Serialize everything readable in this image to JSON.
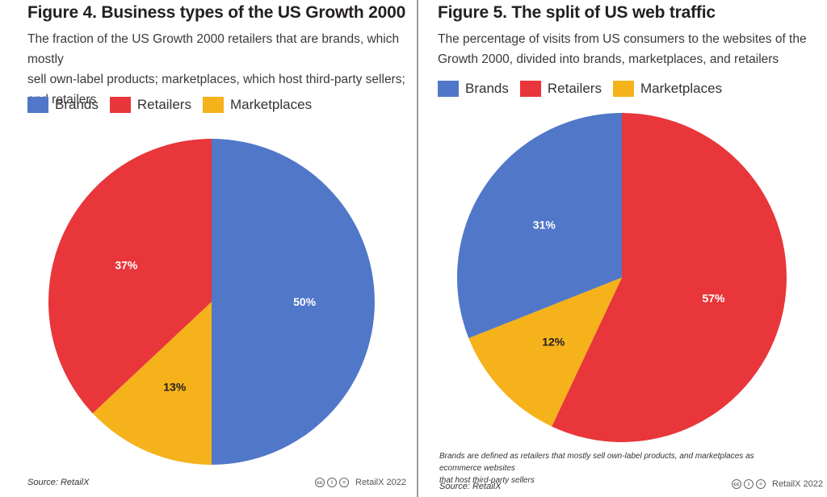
{
  "figure4": {
    "title": "Figure 4. Business types of the US Growth 2000",
    "subtitle": [
      "The fraction of the US Growth 2000 retailers that are brands, which mostly",
      "sell own-label products; marketplaces, which host third-party sellers;",
      "and retailers"
    ],
    "legend": [
      "Brands",
      "Retailers",
      "Marketplaces"
    ],
    "source": "Source: RetailX",
    "credit": "RetailX 2022"
  },
  "figure5": {
    "title": "Figure 5. The split of US web traffic",
    "subtitle": [
      "The percentage of visits from US consumers to the websites of the",
      "Growth 2000, divided into brands, marketplaces, and retailers"
    ],
    "legend": [
      "Brands",
      "Retailers",
      "Marketplaces"
    ],
    "footnote": [
      "Brands are defined as retailers that mostly sell own-label products, and marketplaces as ecommerce websites",
      "that host third-party sellers"
    ],
    "source": "Source: RetailX",
    "credit": "RetailX 2022"
  },
  "chart_data": [
    {
      "type": "pie",
      "title": "Figure 4. Business types of the US Growth 2000",
      "categories": [
        "Brands",
        "Marketplaces",
        "Retailers"
      ],
      "values": [
        50,
        13,
        37
      ],
      "labels": [
        "50%",
        "13%",
        "37%"
      ],
      "colors": [
        "#5177c8",
        "#f5b21a",
        "#e8363a"
      ],
      "legend_position": "top-left"
    },
    {
      "type": "pie",
      "title": "Figure 5. The split of US web traffic",
      "categories": [
        "Retailers",
        "Marketplaces",
        "Brands"
      ],
      "values": [
        57,
        12,
        31
      ],
      "labels": [
        "57%",
        "12%",
        "31%"
      ],
      "colors": [
        "#e8363a",
        "#f5b21a",
        "#5177c8"
      ],
      "legend_position": "top-left"
    }
  ],
  "icons": [
    "cc-icon",
    "attribution-icon",
    "no-derivatives-icon"
  ]
}
